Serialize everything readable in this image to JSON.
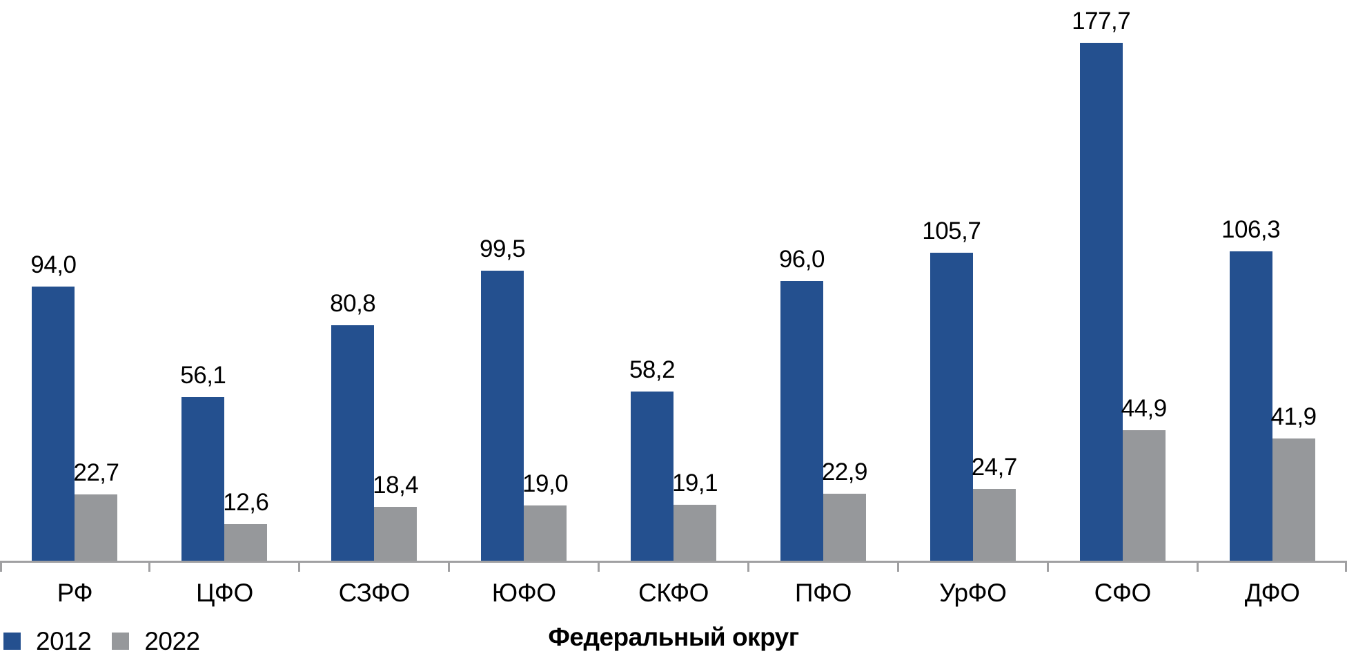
{
  "chart_data": {
    "type": "bar",
    "categories": [
      "РФ",
      "ЦФО",
      "СЗФО",
      "ЮФО",
      "СКФО",
      "ПФО",
      "УрФО",
      "СФО",
      "ДФО"
    ],
    "series": [
      {
        "name": "2012",
        "color": "#24508f",
        "values": [
          94.0,
          56.1,
          80.8,
          99.5,
          58.2,
          96.0,
          105.7,
          177.7,
          106.3
        ],
        "labels": [
          "94,0",
          "56,1",
          "80,8",
          "99,5",
          "58,2",
          "96,0",
          "105,7",
          "177,7",
          "106,3"
        ]
      },
      {
        "name": "2022",
        "color": "#96989b",
        "values": [
          22.7,
          12.6,
          18.4,
          19.0,
          19.1,
          22.9,
          24.7,
          44.9,
          41.9
        ],
        "labels": [
          "22,7",
          "12,6",
          "18,4",
          "19,0",
          "19,1",
          "22,9",
          "24,7",
          "44,9",
          "41,9"
        ]
      }
    ],
    "title": "",
    "xlabel": "Федеральный округ",
    "ylabel": "",
    "ylim": [
      0,
      192.5
    ],
    "grid": false,
    "y_axis_visible": false,
    "data_labels": "outside-end",
    "legend_position": "bottom-left",
    "axis_color": "#a0a0a2",
    "text_color": "#000000"
  }
}
